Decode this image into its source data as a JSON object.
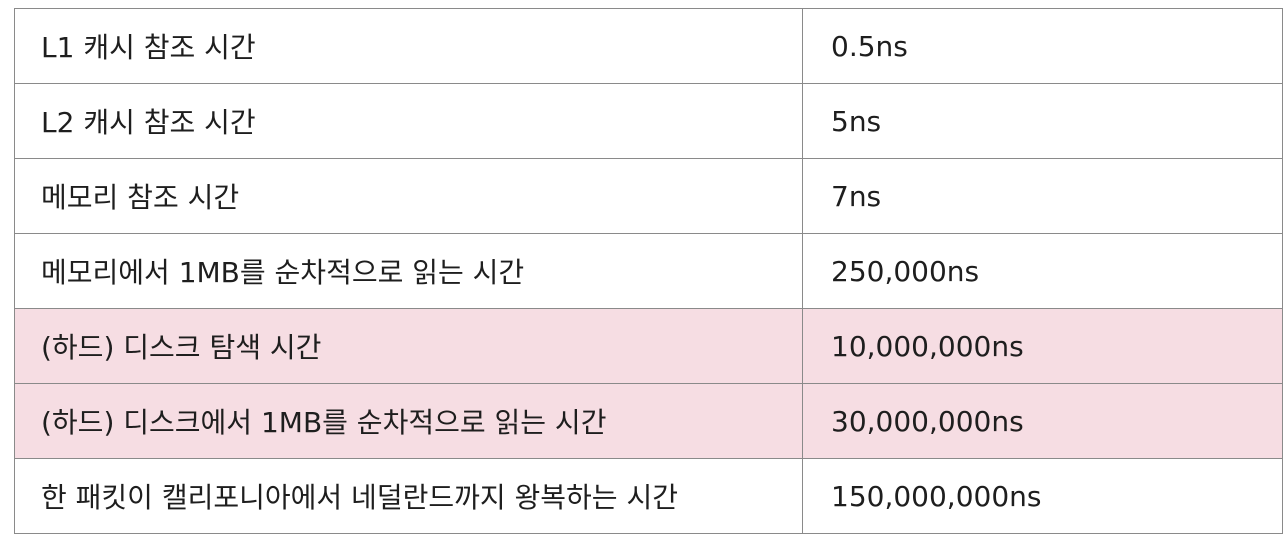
{
  "table": {
    "rows": [
      {
        "label": "L1 캐시 참조 시간",
        "value": "0.5ns",
        "highlight": false
      },
      {
        "label": "L2 캐시 참조 시간",
        "value": "5ns",
        "highlight": false
      },
      {
        "label": "메모리 참조 시간",
        "value": "7ns",
        "highlight": false
      },
      {
        "label": "메모리에서 1MB를 순차적으로 읽는 시간",
        "value": "250,000ns",
        "highlight": false
      },
      {
        "label": "(하드) 디스크 탐색 시간",
        "value": "10,000,000ns",
        "highlight": true
      },
      {
        "label": "(하드) 디스크에서 1MB를 순차적으로 읽는 시간",
        "value": "30,000,000ns",
        "highlight": true
      },
      {
        "label": "한 패킷이 캘리포니아에서 네덜란드까지 왕복하는 시간",
        "value": "150,000,000ns",
        "highlight": false
      }
    ]
  },
  "colors": {
    "highlight": "#f6dde3",
    "border": "#8a8a8a",
    "text": "#1e1e1e"
  }
}
